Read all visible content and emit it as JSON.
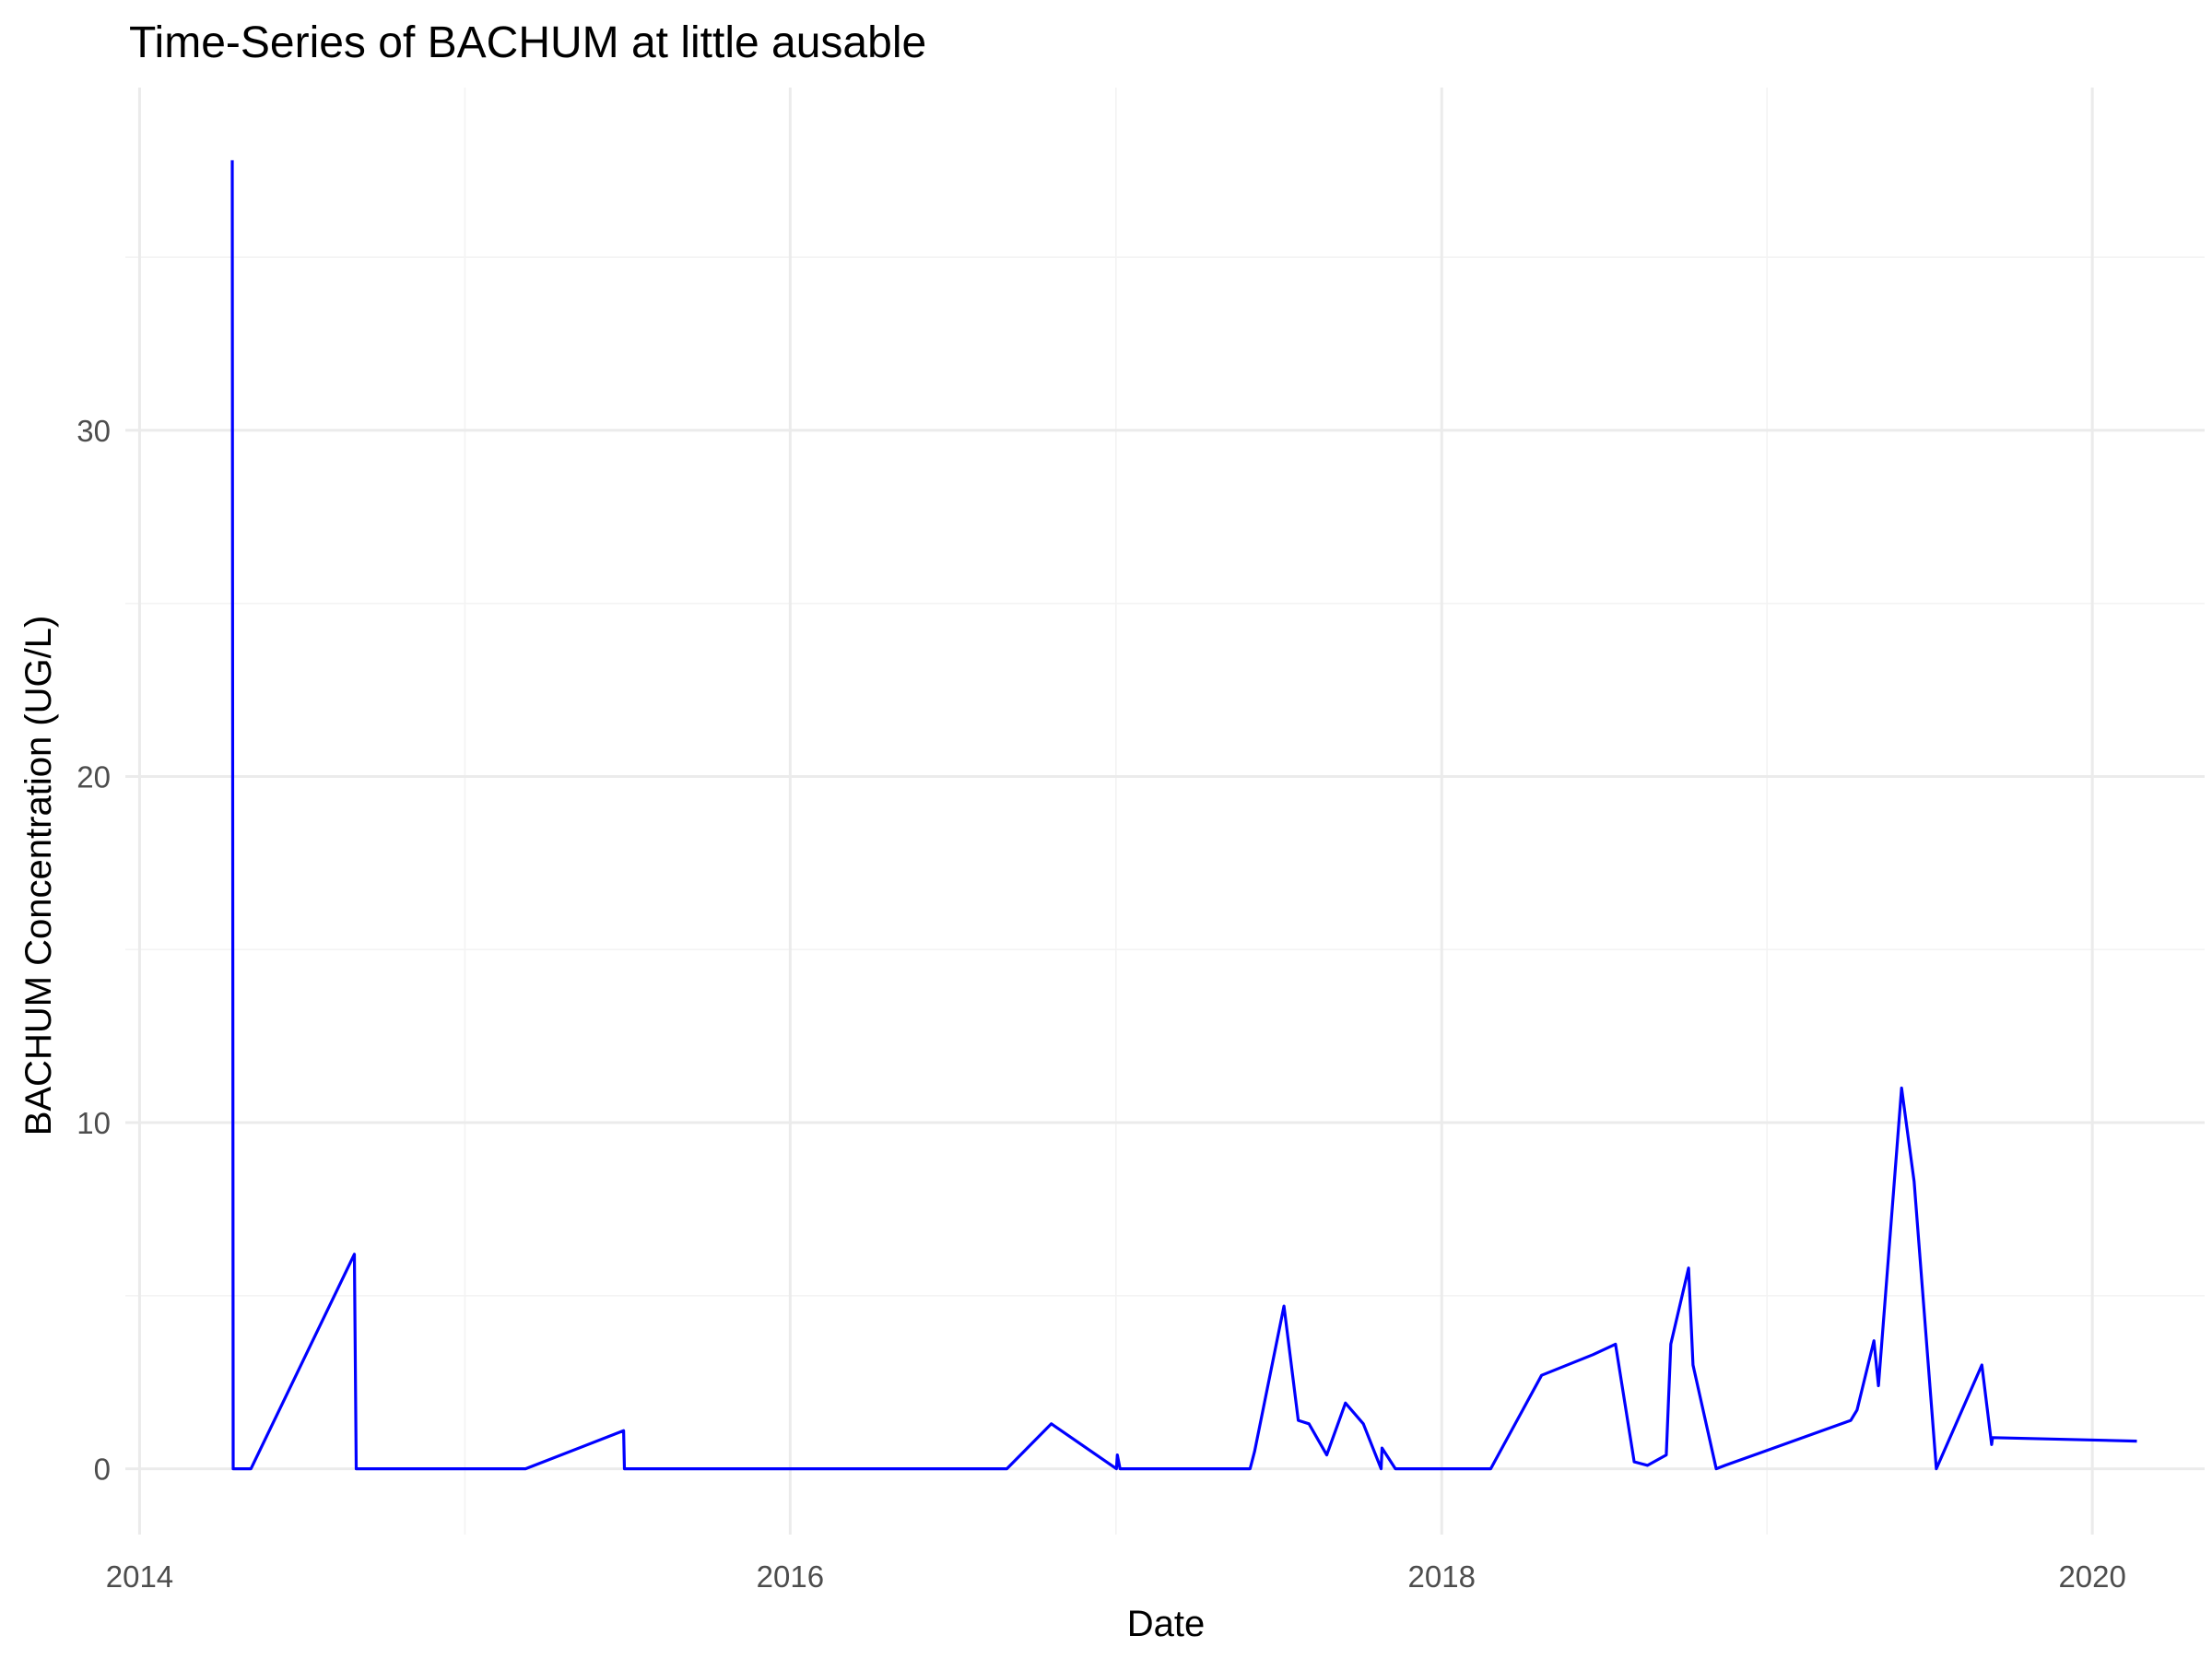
{
  "chart_data": {
    "type": "line",
    "title": "Time-Series of BACHUM at little ausable",
    "xlabel": "Date",
    "ylabel": "BACHUM Concentration (UG/L)",
    "x_ticks": [
      "2014",
      "2016",
      "2018",
      "2020"
    ],
    "y_ticks": [
      "0",
      "10",
      "20",
      "30"
    ],
    "xlim": [
      "2013-12-16",
      "2020-05-06"
    ],
    "ylim": [
      -1.9,
      39.9
    ],
    "grid": true,
    "legend": "none",
    "series": [
      {
        "color": "#0000ff",
        "x": [
          "2014-04-15",
          "2014-04-16",
          "2014-04-17",
          "2014-05-06",
          "2014-08-30",
          "2014-09-01",
          "2015-03-10",
          "2015-06-28",
          "2015-06-29",
          "2016-08-31",
          "2016-10-20",
          "2017-01-01",
          "2017-01-02",
          "2017-01-05",
          "2017-05-31",
          "2017-06-05",
          "2017-07-08",
          "2017-07-24",
          "2017-08-05",
          "2017-08-25",
          "2017-09-15",
          "2017-10-05",
          "2017-10-25",
          "2017-10-26",
          "2017-11-10",
          "2018-02-25",
          "2018-04-23",
          "2018-06-20",
          "2018-07-15",
          "2018-08-05",
          "2018-08-20",
          "2018-09-10",
          "2018-09-15",
          "2018-10-05",
          "2018-10-10",
          "2018-11-05",
          "2018-11-15",
          "2019-04-05",
          "2019-04-12",
          "2019-05-01",
          "2019-05-06",
          "2019-06-01",
          "2019-06-15",
          "2019-07-10",
          "2019-08-30",
          "2019-09-10",
          "2019-09-11",
          "2020-02-20"
        ],
        "y": [
          37.8,
          0,
          0,
          0,
          6.2,
          0,
          0,
          1.1,
          0,
          0,
          1.3,
          0,
          0.4,
          0,
          0,
          0.5,
          4.7,
          1.4,
          1.3,
          0.4,
          1.9,
          1.3,
          0,
          0.6,
          0,
          0,
          2.7,
          3.3,
          3.6,
          0.2,
          0.1,
          0.4,
          3.6,
          5.8,
          3.0,
          0,
          0.1,
          1.4,
          1.7,
          3.7,
          2.4,
          11.0,
          8.3,
          0,
          3.0,
          0.7,
          0.9,
          0.8
        ]
      }
    ]
  }
}
